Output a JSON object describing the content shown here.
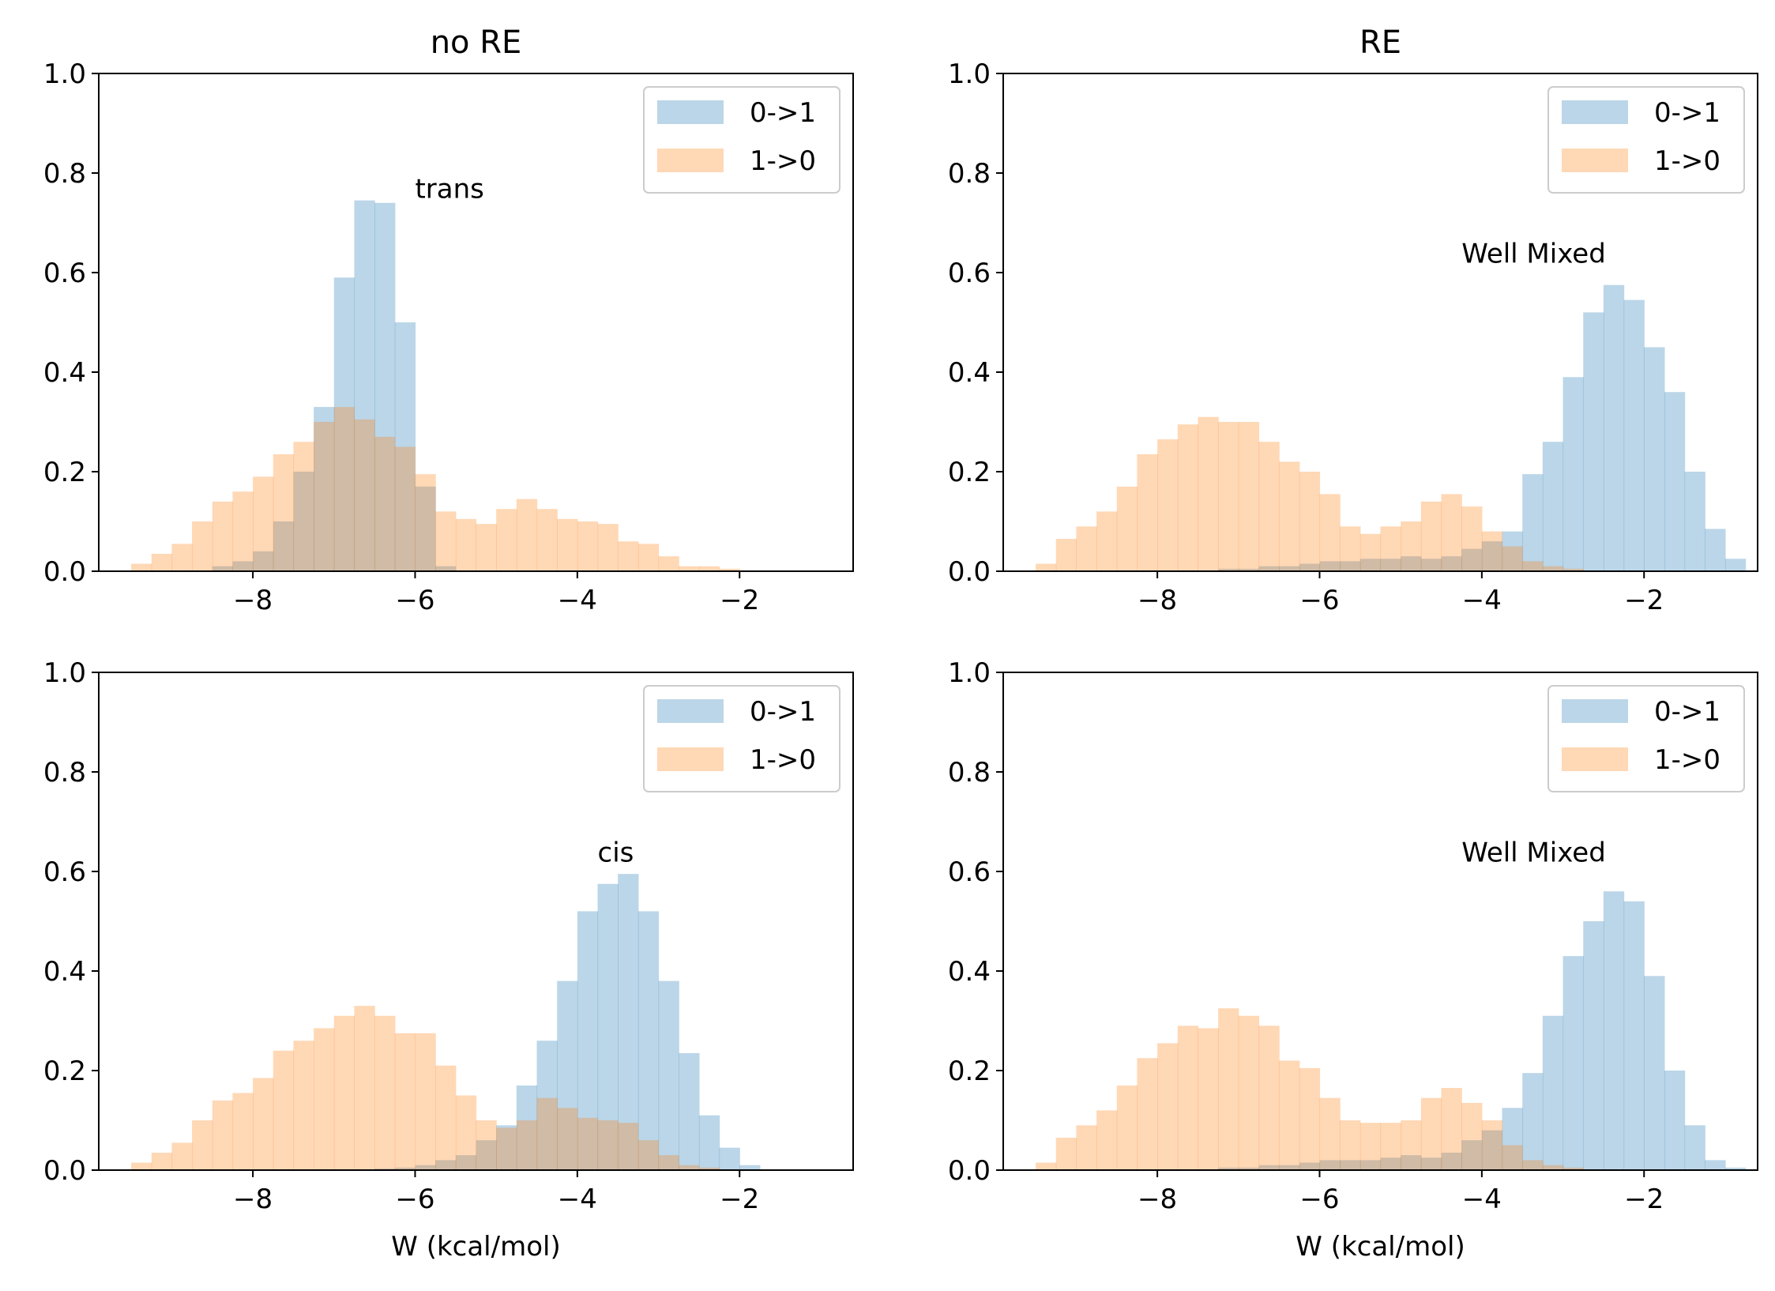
{
  "chart_data": [
    {
      "type": "bar",
      "title": "no RE",
      "xlabel": "",
      "ylabel": "",
      "annotation": {
        "text": "trans",
        "x": -6.0,
        "y": 0.75
      },
      "xlim": [
        -9.9,
        -0.6
      ],
      "ylim": [
        0,
        1.0
      ],
      "xticks": [
        -8,
        -6,
        -4,
        -2
      ],
      "xtick_labels": [
        "−8",
        "−6",
        "−4",
        "−2"
      ],
      "yticks": [
        0.0,
        0.2,
        0.4,
        0.6,
        0.8,
        1.0
      ],
      "ytick_labels": [
        "0.0",
        "0.2",
        "0.4",
        "0.6",
        "0.8",
        "1.0"
      ],
      "legend_position": "top-right",
      "legend": [
        "0->1",
        "1->0"
      ],
      "bin_start": -9.5,
      "bin_width": 0.25,
      "series": [
        {
          "name": "0->1",
          "color": "#1f77b4",
          "alpha": 0.3,
          "values": [
            0,
            0,
            0,
            0,
            0.01,
            0.02,
            0.04,
            0.1,
            0.2,
            0.33,
            0.59,
            0.745,
            0.74,
            0.5,
            0.17,
            0.01
          ]
        },
        {
          "name": "1->0",
          "color": "#ff7f0e",
          "alpha": 0.3,
          "values": [
            0.015,
            0.035,
            0.055,
            0.1,
            0.14,
            0.16,
            0.19,
            0.235,
            0.26,
            0.3,
            0.33,
            0.305,
            0.27,
            0.25,
            0.195,
            0.12,
            0.105,
            0.095,
            0.125,
            0.145,
            0.125,
            0.105,
            0.1,
            0.095,
            0.06,
            0.055,
            0.03,
            0.01,
            0.01,
            0.005
          ]
        }
      ]
    },
    {
      "type": "bar",
      "title": "RE",
      "xlabel": "",
      "ylabel": "",
      "annotation": {
        "text": "Well Mixed",
        "x": -4.25,
        "y": 0.62
      },
      "xlim": [
        -9.9,
        -0.6
      ],
      "ylim": [
        0,
        1.0
      ],
      "xticks": [
        -8,
        -6,
        -4,
        -2
      ],
      "xtick_labels": [
        "−8",
        "−6",
        "−4",
        "−2"
      ],
      "yticks": [
        0.0,
        0.2,
        0.4,
        0.6,
        0.8,
        1.0
      ],
      "ytick_labels": [
        "0.0",
        "0.2",
        "0.4",
        "0.6",
        "0.8",
        "1.0"
      ],
      "legend_position": "top-right",
      "legend": [
        "0->1",
        "1->0"
      ],
      "bin_start": -9.5,
      "bin_width": 0.25,
      "series": [
        {
          "name": "0->1",
          "color": "#1f77b4",
          "alpha": 0.3,
          "values": [
            0,
            0,
            0,
            0,
            0,
            0,
            0,
            0,
            0,
            0.005,
            0.005,
            0.01,
            0.01,
            0.015,
            0.02,
            0.02,
            0.025,
            0.025,
            0.03,
            0.025,
            0.03,
            0.045,
            0.06,
            0.08,
            0.195,
            0.26,
            0.39,
            0.52,
            0.575,
            0.545,
            0.45,
            0.36,
            0.2,
            0.085,
            0.025
          ]
        },
        {
          "name": "1->0",
          "color": "#ff7f0e",
          "alpha": 0.3,
          "values": [
            0.015,
            0.065,
            0.09,
            0.12,
            0.17,
            0.235,
            0.265,
            0.295,
            0.31,
            0.3,
            0.3,
            0.26,
            0.22,
            0.2,
            0.155,
            0.09,
            0.075,
            0.09,
            0.1,
            0.14,
            0.155,
            0.13,
            0.08,
            0.05,
            0.02,
            0.01,
            0.005
          ]
        }
      ]
    },
    {
      "type": "bar",
      "title": "",
      "xlabel": "W (kcal/mol)",
      "ylabel": "",
      "annotation": {
        "text": "cis",
        "x": -3.75,
        "y": 0.62
      },
      "xlim": [
        -9.9,
        -0.6
      ],
      "ylim": [
        0,
        1.0
      ],
      "xticks": [
        -8,
        -6,
        -4,
        -2
      ],
      "xtick_labels": [
        "−8",
        "−6",
        "−4",
        "−2"
      ],
      "yticks": [
        0.0,
        0.2,
        0.4,
        0.6,
        0.8,
        1.0
      ],
      "ytick_labels": [
        "0.0",
        "0.2",
        "0.4",
        "0.6",
        "0.8",
        "1.0"
      ],
      "legend_position": "top-right",
      "legend": [
        "0->1",
        "1->0"
      ],
      "bin_start": -9.5,
      "bin_width": 0.25,
      "series": [
        {
          "name": "0->1",
          "color": "#1f77b4",
          "alpha": 0.3,
          "values": [
            0,
            0,
            0,
            0,
            0,
            0,
            0,
            0,
            0,
            0,
            0,
            0,
            0.003,
            0.005,
            0.01,
            0.02,
            0.03,
            0.06,
            0.09,
            0.17,
            0.26,
            0.38,
            0.52,
            0.575,
            0.595,
            0.52,
            0.38,
            0.235,
            0.11,
            0.045,
            0.01
          ]
        },
        {
          "name": "1->0",
          "color": "#ff7f0e",
          "alpha": 0.3,
          "values": [
            0.015,
            0.035,
            0.055,
            0.1,
            0.14,
            0.155,
            0.185,
            0.24,
            0.26,
            0.285,
            0.31,
            0.33,
            0.31,
            0.275,
            0.275,
            0.21,
            0.15,
            0.1,
            0.085,
            0.1,
            0.145,
            0.125,
            0.105,
            0.1,
            0.095,
            0.06,
            0.03,
            0.01,
            0.005
          ]
        }
      ]
    },
    {
      "type": "bar",
      "title": "",
      "xlabel": "W (kcal/mol)",
      "ylabel": "",
      "annotation": {
        "text": "Well Mixed",
        "x": -4.25,
        "y": 0.62
      },
      "xlim": [
        -9.9,
        -0.6
      ],
      "ylim": [
        0,
        1.0
      ],
      "xticks": [
        -8,
        -6,
        -4,
        -2
      ],
      "xtick_labels": [
        "−8",
        "−6",
        "−4",
        "−2"
      ],
      "yticks": [
        0.0,
        0.2,
        0.4,
        0.6,
        0.8,
        1.0
      ],
      "ytick_labels": [
        "0.0",
        "0.2",
        "0.4",
        "0.6",
        "0.8",
        "1.0"
      ],
      "legend_position": "top-right",
      "legend": [
        "0->1",
        "1->0"
      ],
      "bin_start": -9.5,
      "bin_width": 0.25,
      "series": [
        {
          "name": "0->1",
          "color": "#1f77b4",
          "alpha": 0.3,
          "values": [
            0,
            0,
            0,
            0,
            0,
            0,
            0,
            0,
            0,
            0.005,
            0.005,
            0.01,
            0.01,
            0.015,
            0.02,
            0.02,
            0.02,
            0.025,
            0.03,
            0.025,
            0.035,
            0.06,
            0.08,
            0.125,
            0.195,
            0.31,
            0.43,
            0.5,
            0.56,
            0.54,
            0.39,
            0.2,
            0.09,
            0.02,
            0.005
          ]
        },
        {
          "name": "1->0",
          "color": "#ff7f0e",
          "alpha": 0.3,
          "values": [
            0.015,
            0.065,
            0.09,
            0.12,
            0.17,
            0.225,
            0.255,
            0.29,
            0.285,
            0.325,
            0.31,
            0.29,
            0.22,
            0.205,
            0.145,
            0.1,
            0.095,
            0.095,
            0.1,
            0.145,
            0.165,
            0.135,
            0.1,
            0.05,
            0.02,
            0.01,
            0.005
          ]
        }
      ]
    }
  ]
}
